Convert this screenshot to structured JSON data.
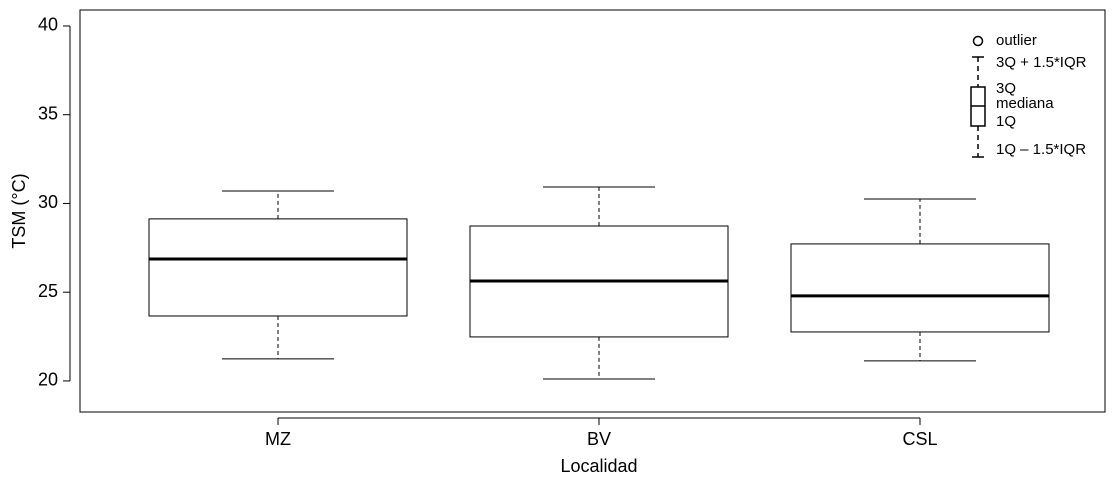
{
  "chart_data": {
    "type": "box",
    "xlabel": "Localidad",
    "ylabel": "TSM (°C)",
    "categories": [
      "MZ",
      "BV",
      "CSL"
    ],
    "boxes": [
      {
        "low": 21.24,
        "q1": 23.66,
        "median": 26.87,
        "q3": 29.13,
        "high": 30.7
      },
      {
        "low": 20.11,
        "q1": 22.48,
        "median": 25.63,
        "q3": 28.73,
        "high": 30.93
      },
      {
        "low": 21.13,
        "q1": 22.76,
        "median": 24.79,
        "q3": 27.72,
        "high": 30.25
      }
    ],
    "ylim": [
      18.25,
      40.9
    ],
    "yticks": [
      20,
      25,
      30,
      35,
      40
    ],
    "key": {
      "outlier": "outlier",
      "upper": "3Q + 1.5*IQR",
      "q3": "3Q",
      "median": "mediana",
      "q1": "1Q",
      "lower": "1Q – 1.5*IQR"
    }
  }
}
